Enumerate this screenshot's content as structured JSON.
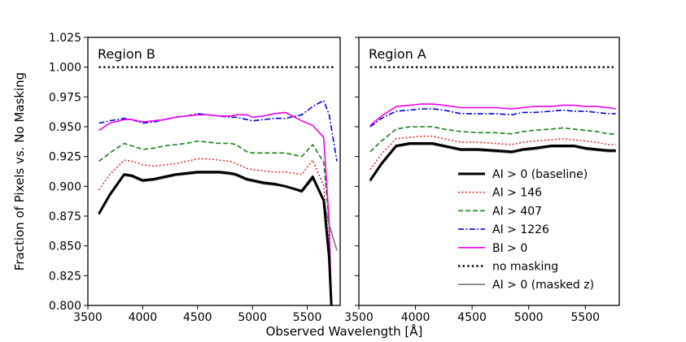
{
  "figure": {
    "ylabel": "Fraction of Pixels vs. No Masking",
    "xlabel": "Observed Wavelength [Å]"
  },
  "legend": {
    "placement": "lower-right of Region A panel",
    "entries": [
      {
        "label": "AI > 0 (baseline)",
        "color": "#000000",
        "dash": "solid",
        "width": "thick"
      },
      {
        "label": "AI > 146",
        "color": "#e41a1c",
        "dash": "dotted",
        "width": "normal"
      },
      {
        "label": "AI > 407",
        "color": "#1a7f1a",
        "dash": "dashed",
        "width": "normal"
      },
      {
        "label": "AI > 1226",
        "color": "#0000dd",
        "dash": "dashdot",
        "width": "normal"
      },
      {
        "label": "BI > 0",
        "color": "#ee00ee",
        "dash": "solid",
        "width": "normal"
      },
      {
        "label": "no masking",
        "color": "#000000",
        "dash": "dotted",
        "width": "normal"
      },
      {
        "label": "AI > 0 (masked z)",
        "color": "#777777",
        "dash": "solid",
        "width": "normal"
      }
    ]
  },
  "chart_data": [
    {
      "type": "line",
      "title": "Region B",
      "xlim": [
        3500,
        5800
      ],
      "ylim": [
        0.8,
        1.025
      ],
      "xticks": [
        "3500",
        "4000",
        "4500",
        "5000",
        "5500"
      ],
      "yticks": [
        "0.800",
        "0.825",
        "0.850",
        "0.875",
        "0.900",
        "0.925",
        "0.950",
        "0.975",
        "1.000",
        "1.025"
      ],
      "grid": false,
      "series": [
        {
          "name": "AI > 0 (baseline)",
          "x": [
            3600,
            3700,
            3830,
            3900,
            4000,
            4100,
            4200,
            4300,
            4400,
            4500,
            4600,
            4700,
            4800,
            4850,
            4950,
            5000,
            5100,
            5200,
            5300,
            5450,
            5550,
            5650,
            5700,
            5720
          ],
          "y": [
            0.877,
            0.893,
            0.91,
            0.909,
            0.905,
            0.906,
            0.908,
            0.91,
            0.911,
            0.912,
            0.912,
            0.912,
            0.911,
            0.91,
            0.906,
            0.905,
            0.903,
            0.902,
            0.9,
            0.896,
            0.908,
            0.888,
            0.84,
            0.8
          ]
        },
        {
          "name": "AI > 146",
          "x": [
            3600,
            3700,
            3830,
            3900,
            4000,
            4100,
            4200,
            4300,
            4400,
            4500,
            4600,
            4700,
            4800,
            4850,
            4950,
            5000,
            5100,
            5200,
            5300,
            5450,
            5550,
            5650,
            5700,
            5720
          ],
          "y": [
            0.897,
            0.91,
            0.922,
            0.921,
            0.918,
            0.917,
            0.918,
            0.919,
            0.921,
            0.923,
            0.923,
            0.922,
            0.921,
            0.919,
            0.915,
            0.914,
            0.913,
            0.912,
            0.912,
            0.91,
            0.922,
            0.9,
            0.85,
            0.8
          ]
        },
        {
          "name": "AI > 407",
          "x": [
            3600,
            3700,
            3830,
            3900,
            4000,
            4100,
            4200,
            4300,
            4400,
            4500,
            4600,
            4700,
            4800,
            4850,
            4950,
            5000,
            5100,
            5200,
            5300,
            5450,
            5550,
            5650,
            5700,
            5720
          ],
          "y": [
            0.921,
            0.928,
            0.936,
            0.934,
            0.931,
            0.932,
            0.934,
            0.935,
            0.936,
            0.938,
            0.937,
            0.936,
            0.936,
            0.935,
            0.929,
            0.928,
            0.928,
            0.928,
            0.928,
            0.925,
            0.935,
            0.92,
            0.87,
            0.8
          ]
        },
        {
          "name": "AI > 1226",
          "x": [
            3600,
            3700,
            3830,
            3900,
            4000,
            4100,
            4200,
            4300,
            4400,
            4500,
            4600,
            4700,
            4800,
            4850,
            4950,
            5000,
            5100,
            5200,
            5300,
            5450,
            5550,
            5650,
            5700,
            5770
          ],
          "y": [
            0.953,
            0.955,
            0.957,
            0.956,
            0.953,
            0.954,
            0.956,
            0.958,
            0.959,
            0.961,
            0.96,
            0.959,
            0.958,
            0.958,
            0.956,
            0.955,
            0.956,
            0.957,
            0.957,
            0.96,
            0.967,
            0.972,
            0.96,
            0.921
          ]
        },
        {
          "name": "BI > 0",
          "x": [
            3600,
            3700,
            3830,
            3900,
            4000,
            4100,
            4200,
            4300,
            4400,
            4500,
            4600,
            4700,
            4800,
            4850,
            4950,
            5000,
            5100,
            5200,
            5300,
            5450,
            5550,
            5650,
            5700,
            5720
          ],
          "y": [
            0.947,
            0.953,
            0.956,
            0.956,
            0.954,
            0.955,
            0.956,
            0.958,
            0.959,
            0.96,
            0.96,
            0.959,
            0.959,
            0.96,
            0.96,
            0.958,
            0.959,
            0.961,
            0.962,
            0.955,
            0.951,
            0.941,
            0.87,
            0.8
          ]
        },
        {
          "name": "no masking",
          "x": [
            3600,
            5750
          ],
          "y": [
            1.0,
            1.0
          ]
        },
        {
          "name": "AI > 0 (masked z)",
          "x": [
            3600,
            3700,
            3830,
            3900,
            4000,
            4100,
            4200,
            4300,
            4400,
            4500,
            4600,
            4700,
            4800,
            4850,
            4950,
            5000,
            5100,
            5200,
            5300,
            5450,
            5550,
            5650,
            5700,
            5770
          ],
          "y": [
            0.876,
            0.892,
            0.909,
            0.908,
            0.904,
            0.905,
            0.907,
            0.909,
            0.91,
            0.911,
            0.911,
            0.911,
            0.91,
            0.909,
            0.905,
            0.904,
            0.902,
            0.901,
            0.9,
            0.895,
            0.906,
            0.888,
            0.868,
            0.846
          ]
        }
      ]
    },
    {
      "type": "line",
      "title": "Region A",
      "xlim": [
        3500,
        5800
      ],
      "ylim": [
        0.8,
        1.025
      ],
      "xticks": [
        "3500",
        "4000",
        "4500",
        "5000",
        "5500"
      ],
      "yticks": [
        "0.800",
        "0.825",
        "0.850",
        "0.875",
        "0.900",
        "0.925",
        "0.950",
        "0.975",
        "1.000",
        "1.025"
      ],
      "grid": false,
      "series": [
        {
          "name": "AI > 0 (baseline)",
          "x": [
            3600,
            3700,
            3830,
            3950,
            4050,
            4150,
            4250,
            4400,
            4550,
            4700,
            4850,
            4950,
            5050,
            5200,
            5300,
            5400,
            5500,
            5600,
            5700,
            5770
          ],
          "y": [
            0.905,
            0.919,
            0.934,
            0.936,
            0.936,
            0.936,
            0.934,
            0.931,
            0.931,
            0.93,
            0.929,
            0.931,
            0.932,
            0.934,
            0.934,
            0.934,
            0.932,
            0.931,
            0.93,
            0.93
          ]
        },
        {
          "name": "AI > 146",
          "x": [
            3600,
            3700,
            3830,
            3950,
            4050,
            4150,
            4250,
            4400,
            4550,
            4700,
            4850,
            4950,
            5050,
            5200,
            5300,
            5400,
            5500,
            5600,
            5700,
            5770
          ],
          "y": [
            0.914,
            0.927,
            0.94,
            0.941,
            0.942,
            0.942,
            0.94,
            0.937,
            0.937,
            0.936,
            0.935,
            0.937,
            0.938,
            0.939,
            0.94,
            0.939,
            0.938,
            0.937,
            0.935,
            0.935
          ]
        },
        {
          "name": "AI > 407",
          "x": [
            3600,
            3700,
            3830,
            3950,
            4050,
            4150,
            4250,
            4400,
            4550,
            4700,
            4850,
            4950,
            5050,
            5200,
            5300,
            5400,
            5500,
            5600,
            5700,
            5770
          ],
          "y": [
            0.929,
            0.938,
            0.948,
            0.95,
            0.95,
            0.95,
            0.948,
            0.946,
            0.945,
            0.945,
            0.944,
            0.946,
            0.947,
            0.948,
            0.949,
            0.948,
            0.947,
            0.946,
            0.944,
            0.944
          ]
        },
        {
          "name": "AI > 1226",
          "x": [
            3600,
            3700,
            3830,
            3950,
            4050,
            4150,
            4250,
            4400,
            4550,
            4700,
            4850,
            4950,
            5050,
            5200,
            5300,
            5400,
            5500,
            5600,
            5700,
            5770
          ],
          "y": [
            0.95,
            0.957,
            0.963,
            0.964,
            0.965,
            0.965,
            0.964,
            0.961,
            0.961,
            0.961,
            0.96,
            0.962,
            0.962,
            0.963,
            0.964,
            0.963,
            0.963,
            0.962,
            0.961,
            0.961
          ]
        },
        {
          "name": "BI > 0",
          "x": [
            3600,
            3700,
            3830,
            3950,
            4050,
            4150,
            4250,
            4400,
            4550,
            4700,
            4850,
            4950,
            5050,
            5200,
            5300,
            5400,
            5500,
            5600,
            5700,
            5770
          ],
          "y": [
            0.951,
            0.959,
            0.967,
            0.968,
            0.969,
            0.969,
            0.968,
            0.966,
            0.966,
            0.966,
            0.965,
            0.966,
            0.967,
            0.967,
            0.968,
            0.968,
            0.967,
            0.967,
            0.966,
            0.965
          ]
        },
        {
          "name": "no masking",
          "x": [
            3600,
            5750
          ],
          "y": [
            1.0,
            1.0
          ]
        },
        {
          "name": "AI > 0 (masked z)",
          "x": [
            3600,
            3700,
            3830,
            3950,
            4050,
            4150,
            4250,
            4400,
            4550,
            4700,
            4850,
            4950,
            5050,
            5200,
            5300,
            5400,
            5500,
            5600,
            5700,
            5770
          ],
          "y": [
            0.904,
            0.918,
            0.933,
            0.935,
            0.935,
            0.935,
            0.933,
            0.93,
            0.93,
            0.929,
            0.928,
            0.93,
            0.931,
            0.933,
            0.933,
            0.933,
            0.931,
            0.93,
            0.929,
            0.929
          ]
        }
      ]
    }
  ]
}
